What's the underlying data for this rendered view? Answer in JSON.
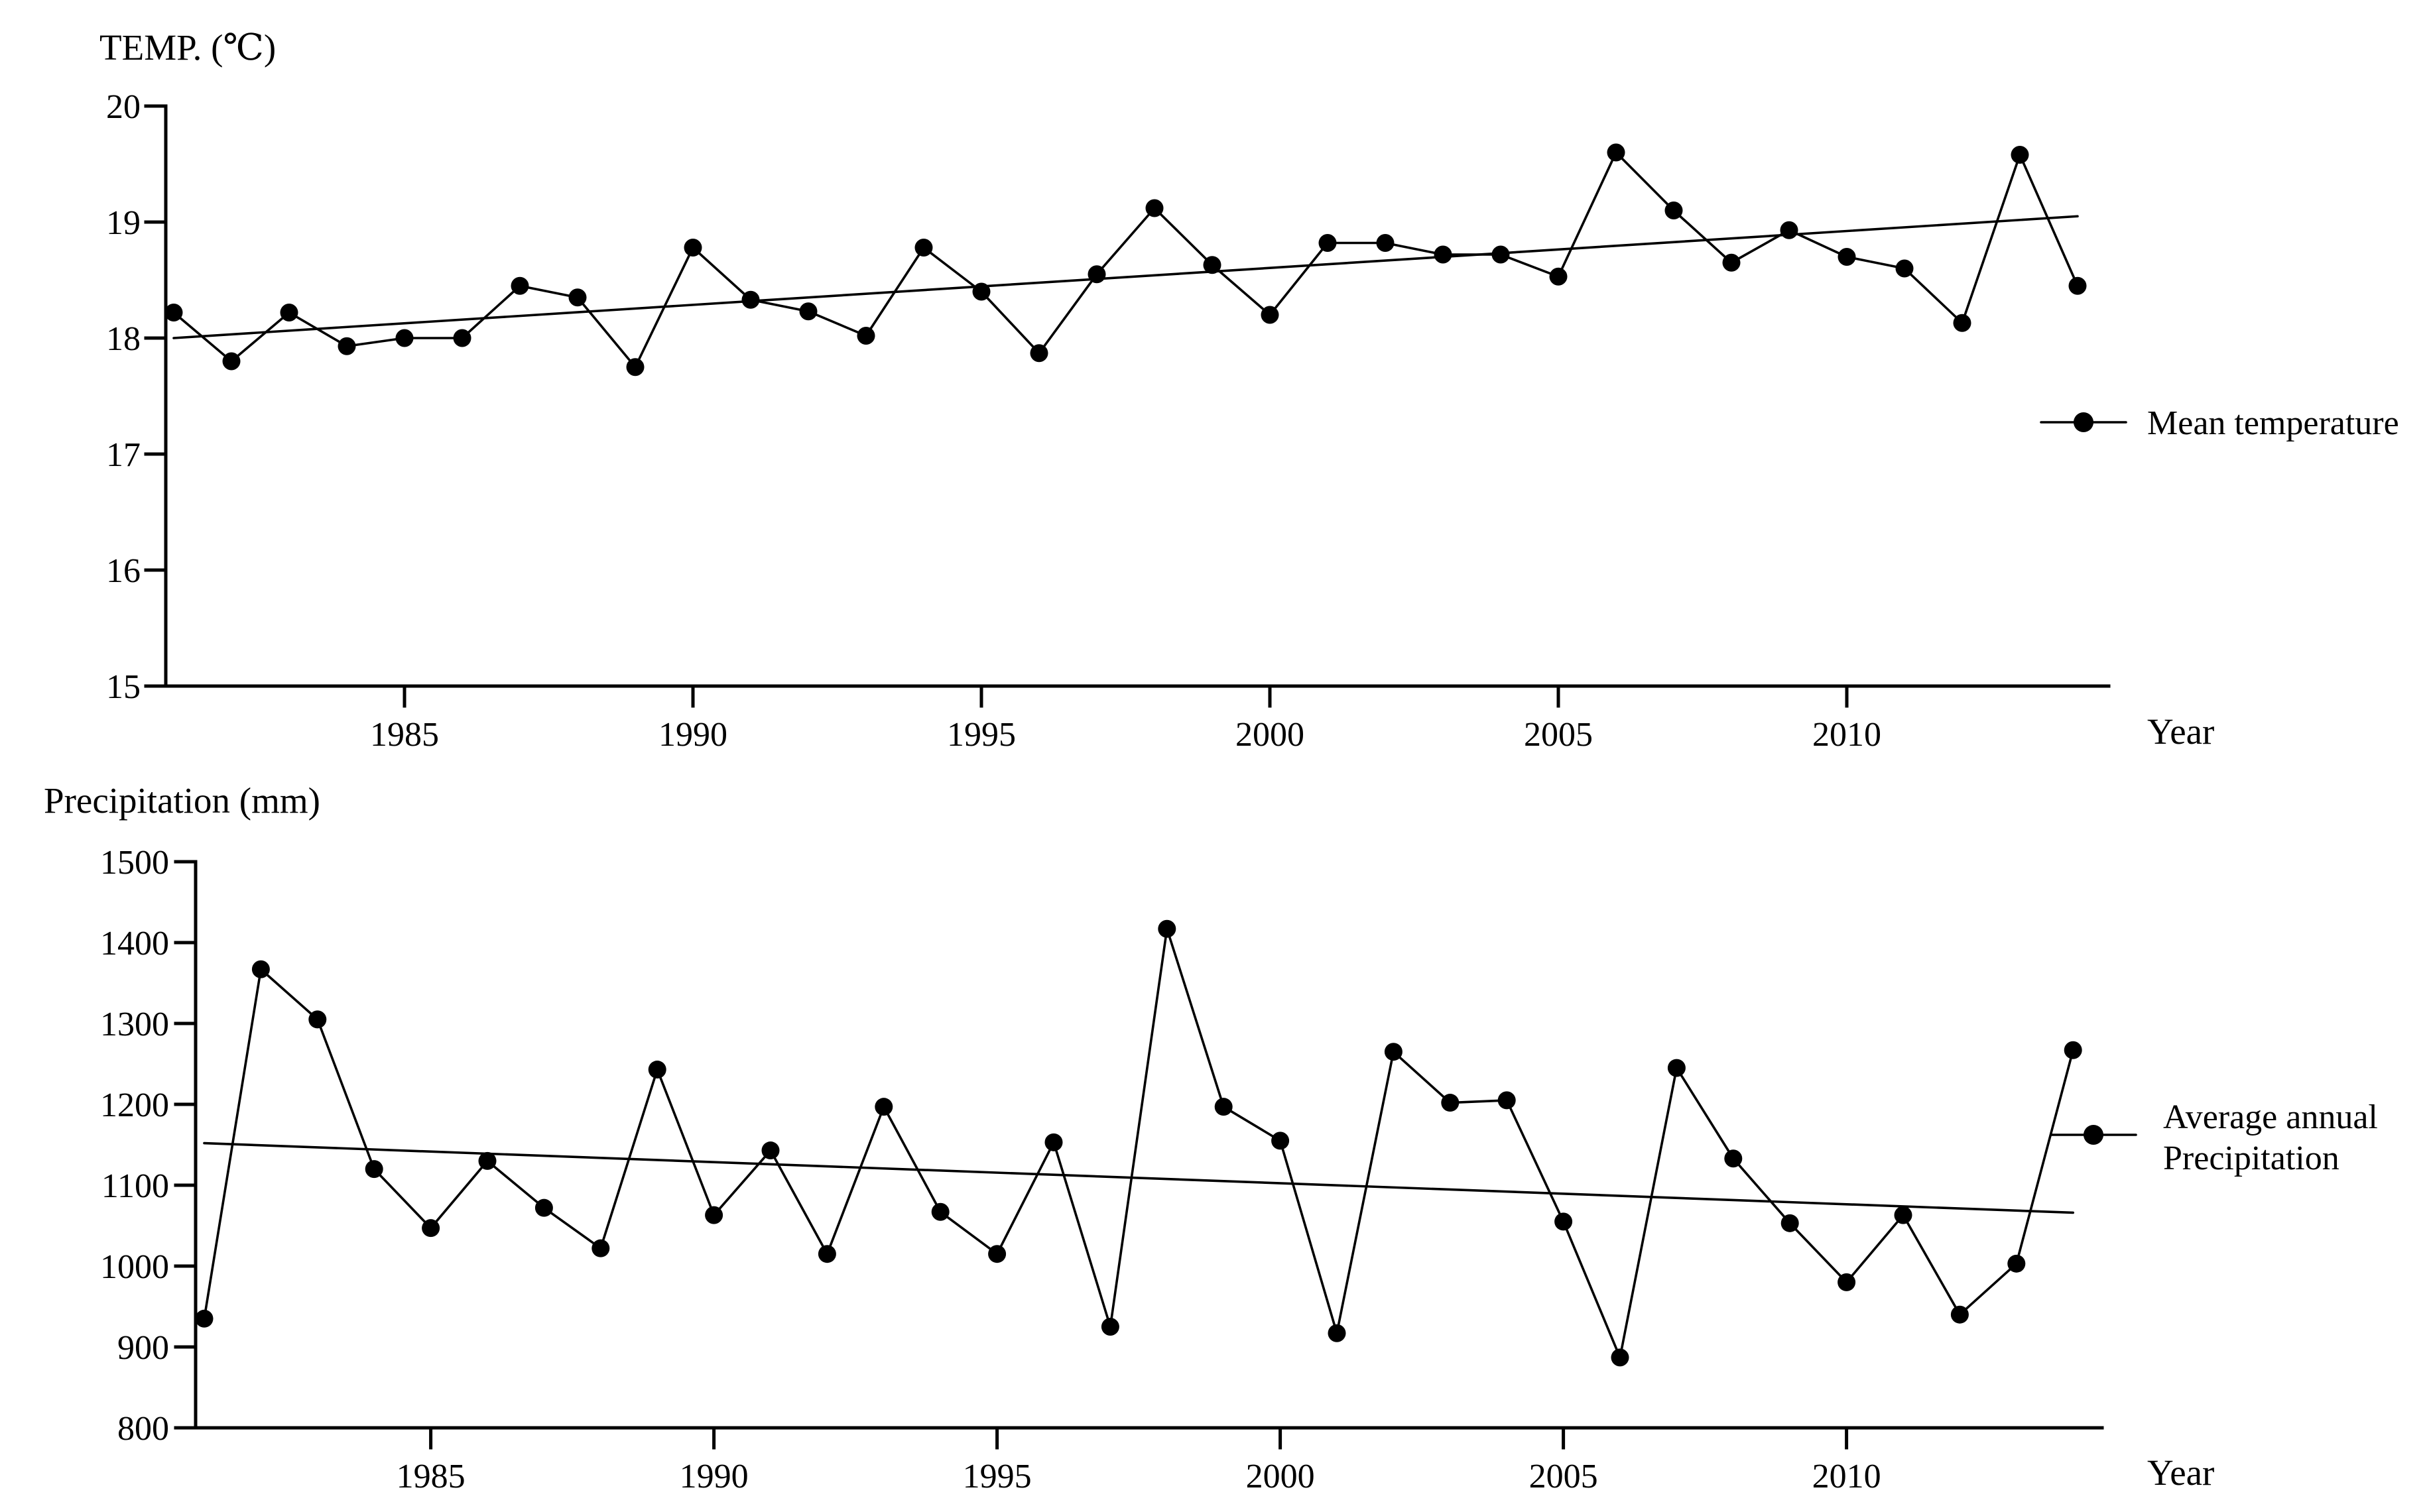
{
  "page": {
    "background": "#ffffff",
    "ink_color": "#000000",
    "description": "Two stacked scientific line charts: annual mean temperature and average annual precipitation, 1981-2014, each with a linear trend line"
  },
  "chart_data": [
    {
      "type": "line",
      "title": "TEMP. (℃)",
      "xlabel": "Year",
      "ylabel": "TEMP. (℃)",
      "legend_lines": [
        "Mean temperature"
      ],
      "legend_position": "right",
      "marker": "filled-circle",
      "grid": false,
      "line_color": "#000000",
      "ylim": [
        15,
        20
      ],
      "yticks": [
        15,
        16,
        17,
        18,
        19,
        20
      ],
      "xticks": [
        1985,
        1990,
        1995,
        2000,
        2005,
        2010
      ],
      "x": [
        1981,
        1982,
        1983,
        1984,
        1985,
        1986,
        1987,
        1988,
        1989,
        1990,
        1991,
        1992,
        1993,
        1994,
        1995,
        1996,
        1997,
        1998,
        1999,
        2000,
        2001,
        2002,
        2003,
        2004,
        2005,
        2006,
        2007,
        2008,
        2009,
        2010,
        2011,
        2012,
        2013,
        2014
      ],
      "series": [
        {
          "name": "Mean temperature",
          "values": [
            18.22,
            17.8,
            18.22,
            17.93,
            18.0,
            18.0,
            18.45,
            18.35,
            17.75,
            18.78,
            18.33,
            18.23,
            18.02,
            18.78,
            18.4,
            17.87,
            18.55,
            19.12,
            18.63,
            18.2,
            18.82,
            18.82,
            18.72,
            18.72,
            18.53,
            19.6,
            19.1,
            18.65,
            18.93,
            18.7,
            18.6,
            18.13,
            19.58,
            18.45
          ]
        }
      ],
      "trend_line": {
        "x": [
          1981,
          2014
        ],
        "values": [
          18.0,
          19.05
        ]
      }
    },
    {
      "type": "line",
      "title": "Precipitation (mm)",
      "xlabel": "Year",
      "ylabel": "Precipitation (mm)",
      "legend_lines": [
        "Average annual",
        "Precipitation"
      ],
      "legend_position": "right",
      "marker": "filled-circle",
      "grid": false,
      "line_color": "#000000",
      "ylim": [
        800,
        1500
      ],
      "yticks": [
        800,
        900,
        1000,
        1100,
        1200,
        1300,
        1400,
        1500
      ],
      "xticks": [
        1985,
        1990,
        1995,
        2000,
        2005,
        2010
      ],
      "x": [
        1981,
        1982,
        1983,
        1984,
        1985,
        1986,
        1987,
        1988,
        1989,
        1990,
        1991,
        1992,
        1993,
        1994,
        1995,
        1996,
        1997,
        1998,
        1999,
        2000,
        2001,
        2002,
        2003,
        2004,
        2005,
        2006,
        2007,
        2008,
        2009,
        2010,
        2011,
        2012,
        2013,
        2014
      ],
      "series": [
        {
          "name": "Average annual Precipitation",
          "values": [
            935,
            1367,
            1305,
            1120,
            1047,
            1130,
            1072,
            1022,
            1243,
            1063,
            1143,
            1015,
            1197,
            1067,
            1015,
            1153,
            925,
            1417,
            1197,
            1155,
            917,
            1265,
            1202,
            1205,
            1055,
            887,
            1245,
            1133,
            1053,
            980,
            1063,
            940,
            1003,
            1267
          ]
        }
      ],
      "trend_line": {
        "x": [
          1981,
          2014
        ],
        "values": [
          1152,
          1066
        ]
      }
    }
  ]
}
